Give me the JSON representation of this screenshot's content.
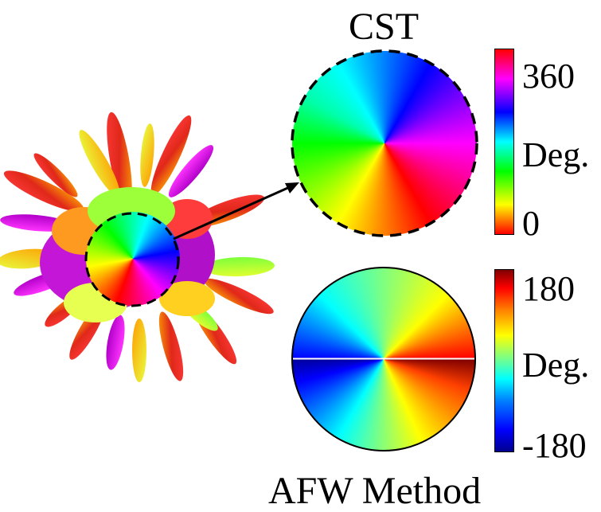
{
  "panels": {
    "top": {
      "title": "CST",
      "colorbar": {
        "max_label": "360",
        "unit_label": "Deg.",
        "min_label": "0"
      }
    },
    "bottom": {
      "title": "AFW Method",
      "colorbar": {
        "max_label": "180",
        "unit_label": "Deg.",
        "min_label": "-180"
      }
    }
  },
  "colors": {
    "hsv_wheel": [
      "#ff0000",
      "#ffff00",
      "#00ff00",
      "#00ffff",
      "#0000ff",
      "#ff00ff",
      "#ff0000"
    ],
    "jet": [
      "#00008f",
      "#0000ff",
      "#0080ff",
      "#00ffff",
      "#80ff80",
      "#ffff00",
      "#ff8000",
      "#ff0000",
      "#800000"
    ],
    "outline": "#000000"
  },
  "icons": {
    "pointer": "arrow-icon",
    "magnifier_outline": "dashed-circle-icon"
  }
}
